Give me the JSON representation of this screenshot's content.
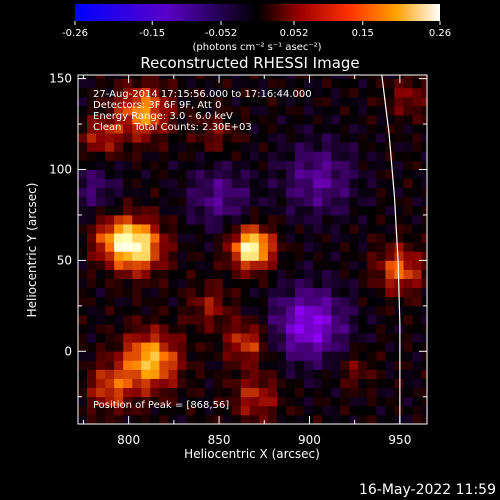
{
  "colorbar": {
    "ticks": [
      "-0.26",
      "-0.15",
      "-0.052",
      "0.052",
      "0.15",
      "0.26"
    ],
    "tick_values": [
      -0.26,
      -0.15,
      -0.052,
      0.052,
      0.15,
      0.26
    ],
    "range": [
      -0.26,
      0.26
    ],
    "unit_label": "(photons cm⁻² s⁻¹ asec⁻²)"
  },
  "chart_data": {
    "type": "heatmap",
    "title": "Reconstructed RHESSI Image",
    "xlabel": "Heliocentric X (arcsec)",
    "ylabel": "Heliocentric Y (arcsec)",
    "xlim": [
      772,
      965
    ],
    "ylim": [
      -40,
      152
    ],
    "x_ticks": [
      800,
      850,
      900,
      950
    ],
    "y_ticks": [
      0,
      50,
      100,
      150
    ],
    "colormap": "red-temperature (blue/purple negative, black zero, red-orange-yellow-white positive)",
    "annotations": [
      "27-Aug-2014 17:15:56.000 to 17:16:44.000",
      "Detectors: 3F 6F 9F, Att 0",
      "Energy Range: 3.0 - 6.0 keV",
      "Clean    Total Counts: 2.30E+03"
    ],
    "peak_label": "Position of Peak = [868,56]",
    "peak_position": [
      868,
      56
    ],
    "limb_curve": [
      [
        940,
        152
      ],
      [
        944,
        120
      ],
      [
        947,
        85
      ],
      [
        949,
        50
      ],
      [
        950,
        15
      ],
      [
        950,
        -40
      ]
    ],
    "sources": [
      {
        "x": 868,
        "y": 57,
        "amp": 0.26,
        "sigma": 8
      },
      {
        "x": 805,
        "y": 58,
        "amp": 0.22,
        "sigma": 10
      },
      {
        "x": 792,
        "y": 62,
        "amp": 0.12,
        "sigma": 9
      },
      {
        "x": 808,
        "y": 132,
        "amp": 0.17,
        "sigma": 10
      },
      {
        "x": 785,
        "y": 118,
        "amp": 0.1,
        "sigma": 8
      },
      {
        "x": 848,
        "y": 120,
        "amp": 0.06,
        "sigma": 8
      },
      {
        "x": 812,
        "y": -5,
        "amp": 0.2,
        "sigma": 11
      },
      {
        "x": 790,
        "y": -20,
        "amp": 0.12,
        "sigma": 9
      },
      {
        "x": 870,
        "y": -25,
        "amp": 0.1,
        "sigma": 9
      },
      {
        "x": 865,
        "y": 5,
        "amp": 0.12,
        "sigma": 8
      },
      {
        "x": 845,
        "y": 25,
        "amp": 0.08,
        "sigma": 8
      },
      {
        "x": 950,
        "y": 45,
        "amp": 0.14,
        "sigma": 9
      },
      {
        "x": 955,
        "y": 140,
        "amp": 0.07,
        "sigma": 8
      },
      {
        "x": 925,
        "y": -10,
        "amp": 0.06,
        "sigma": 7
      },
      {
        "x": 900,
        "y": 15,
        "amp": -0.16,
        "sigma": 14
      },
      {
        "x": 905,
        "y": 95,
        "amp": -0.1,
        "sigma": 14
      },
      {
        "x": 850,
        "y": 85,
        "amp": -0.09,
        "sigma": 12
      },
      {
        "x": 780,
        "y": 90,
        "amp": -0.07,
        "sigma": 10
      }
    ]
  },
  "footer": {
    "timestamp": "16-May-2022 11:59"
  }
}
